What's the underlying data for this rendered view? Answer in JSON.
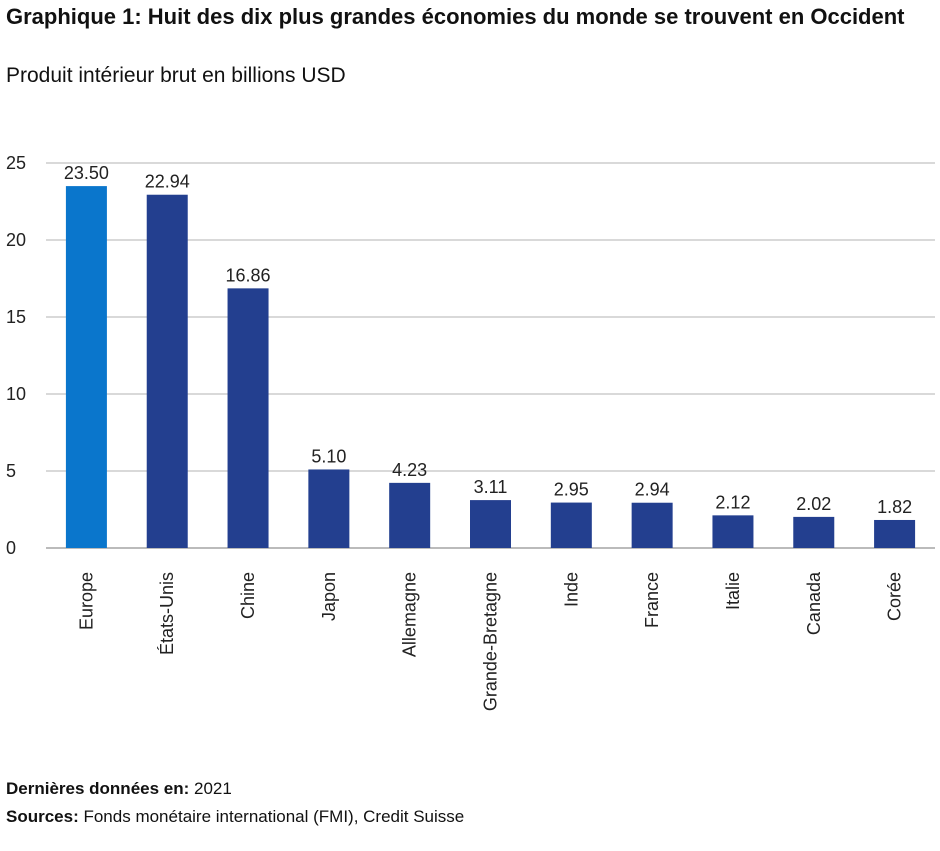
{
  "title": "Graphique 1: Huit des dix plus grandes économies du monde se trouvent en Occident",
  "subtitle": "Produit intérieur brut en billions USD",
  "footer": {
    "date_label": "Dernières données en:",
    "date_value": " 2021",
    "sources_label": "Sources:",
    "sources_value": " Fonds monétaire international (FMI), Credit Suisse"
  },
  "colors": {
    "highlight": "#0a76cc",
    "bar": "#233f8f",
    "grid": "#b3b3b3"
  },
  "chart_data": {
    "type": "bar",
    "categories": [
      "Europe",
      "États-Unis",
      "Chine",
      "Japon",
      "Allemagne",
      "Grande-Bretagne",
      "Inde",
      "France",
      "Italie",
      "Canada",
      "Corée"
    ],
    "values": [
      23.5,
      22.94,
      16.86,
      5.1,
      4.23,
      3.11,
      2.95,
      2.94,
      2.12,
      2.02,
      1.82
    ],
    "value_labels": [
      "23.50",
      "22.94",
      "16.86",
      "5.10",
      "4.23",
      "3.11",
      "2.95",
      "2.94",
      "2.12",
      "2.02",
      "1.82"
    ],
    "highlight_category": "Europe",
    "ylim": [
      0,
      25
    ],
    "yticks": [
      0,
      5,
      10,
      15,
      20,
      25
    ],
    "grid": true,
    "xlabel": "",
    "ylabel": ""
  }
}
